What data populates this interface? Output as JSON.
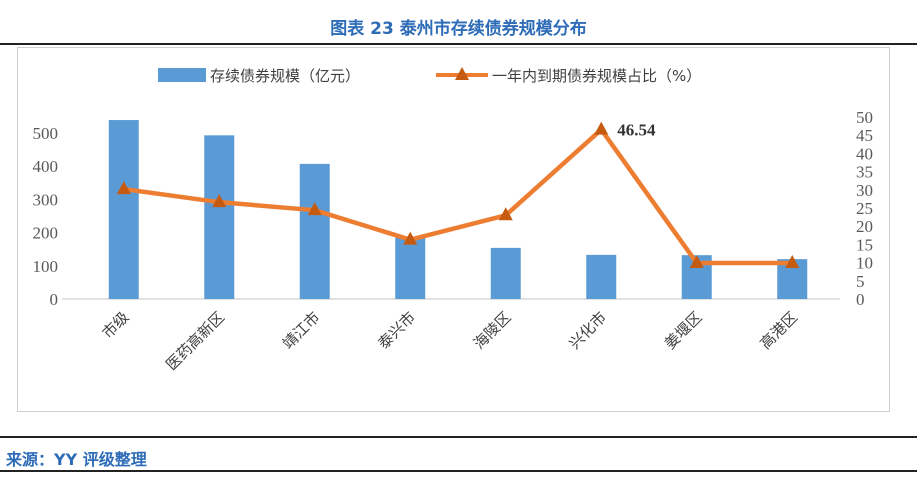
{
  "title": "图表 23  泰州市存续债券规模分布",
  "source": "来源：YY 评级整理",
  "chart_data": {
    "type": "bar+line",
    "categories": [
      "市级",
      "医药高新区",
      "靖江市",
      "泰兴市",
      "海陵区",
      "兴化市",
      "姜堰区",
      "高港区"
    ],
    "series": [
      {
        "name": "存续债券规模（亿元）",
        "type": "bar",
        "axis": "left",
        "color": "#5b9bd5",
        "values": [
          539,
          493,
          407,
          185,
          154,
          133,
          132,
          120
        ]
      },
      {
        "name": "一年内到期债券规模占比（%）",
        "type": "line",
        "axis": "right",
        "color": "#ed7d31",
        "marker": "triangle",
        "marker_color": "#c55a11",
        "values": [
          30.2,
          26.6,
          24.4,
          16.3,
          23.0,
          46.54,
          9.9,
          9.9
        ]
      }
    ],
    "annotation": "46.54",
    "left_axis": {
      "range": [
        0,
        500
      ],
      "ticks": [
        "0",
        "100",
        "200",
        "300",
        "400",
        "500"
      ]
    },
    "right_axis": {
      "range": [
        0,
        50
      ],
      "ticks": [
        "0",
        "5",
        "10",
        "15",
        "20",
        "25",
        "30",
        "35",
        "40",
        "45",
        "50"
      ]
    },
    "grid": false,
    "legend": "top"
  }
}
